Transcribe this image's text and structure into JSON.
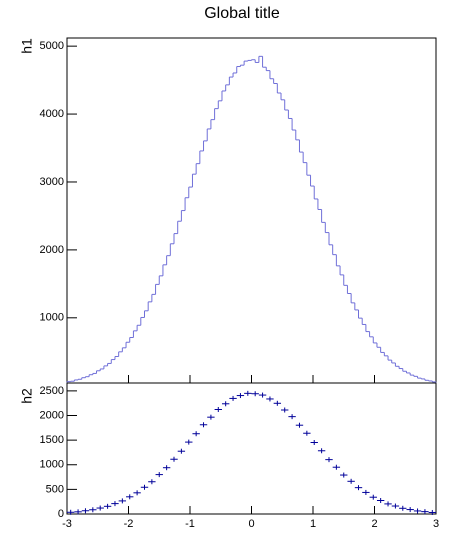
{
  "title": "Global title",
  "chart_data": [
    {
      "type": "histogram",
      "y_label": "h1",
      "color": "#6f6fd8",
      "bins": [
        -3,
        -2.94,
        -2.88,
        -2.82,
        -2.76,
        -2.7,
        -2.64,
        -2.58,
        -2.52,
        -2.46,
        -2.4,
        -2.34,
        -2.28,
        -2.22,
        -2.16,
        -2.1,
        -2.04,
        -1.98,
        -1.92,
        -1.86,
        -1.8,
        -1.74,
        -1.68,
        -1.62,
        -1.56,
        -1.5,
        -1.44,
        -1.38,
        -1.32,
        -1.26,
        -1.2,
        -1.14,
        -1.08,
        -1.02,
        -0.96,
        -0.9,
        -0.84,
        -0.78,
        -0.72,
        -0.66,
        -0.6,
        -0.54,
        -0.48,
        -0.42,
        -0.36,
        -0.3,
        -0.24,
        -0.18,
        -0.12,
        -0.06,
        0,
        0.06,
        0.12,
        0.18,
        0.24,
        0.3,
        0.36,
        0.42,
        0.48,
        0.54,
        0.6,
        0.66,
        0.72,
        0.78,
        0.84,
        0.9,
        0.96,
        1.02,
        1.08,
        1.14,
        1.2,
        1.26,
        1.32,
        1.38,
        1.44,
        1.5,
        1.56,
        1.62,
        1.68,
        1.74,
        1.8,
        1.86,
        1.92,
        1.98,
        2.04,
        2.1,
        2.16,
        2.22,
        2.28,
        2.34,
        2.4,
        2.46,
        2.52,
        2.58,
        2.64,
        2.7,
        2.76,
        2.82,
        2.88,
        2.94,
        3
      ],
      "values": [
        60,
        66,
        85,
        95,
        118,
        133,
        162,
        181,
        220,
        247,
        292,
        328,
        385,
        430,
        499,
        558,
        640,
        710,
        808,
        890,
        1005,
        1103,
        1235,
        1345,
        1492,
        1618,
        1780,
        1915,
        2090,
        2240,
        2422,
        2579,
        2768,
        2925,
        3115,
        3270,
        3457,
        3605,
        3781,
        3918,
        4080,
        4195,
        4340,
        4430,
        4545,
        4605,
        4700,
        4720,
        4780,
        4790,
        4800,
        4760,
        4850,
        4690,
        4640,
        4520,
        4450,
        4310,
        4210,
        4060,
        3935,
        3765,
        3620,
        3440,
        3285,
        3100,
        2940,
        2750,
        2595,
        2405,
        2255,
        2075,
        1930,
        1765,
        1632,
        1478,
        1358,
        1220,
        1116,
        995,
        902,
        797,
        720,
        630,
        566,
        490,
        440,
        377,
        335,
        286,
        253,
        213,
        188,
        156,
        138,
        112,
        100,
        80,
        70,
        56
      ],
      "xlim": [
        -3,
        3
      ],
      "xticks": [
        -3,
        -2,
        -1,
        0,
        1,
        2,
        3
      ],
      "ylim": [
        40,
        5120
      ],
      "yticks": [
        1000,
        2000,
        3000,
        4000,
        5000
      ]
    },
    {
      "type": "errorbar-histogram",
      "y_label": "h2",
      "color": "#000099",
      "bins": [
        -3,
        -2.88,
        -2.76,
        -2.64,
        -2.52,
        -2.4,
        -2.28,
        -2.16,
        -2.04,
        -1.92,
        -1.8,
        -1.68,
        -1.56,
        -1.44,
        -1.32,
        -1.2,
        -1.08,
        -0.96,
        -0.84,
        -0.72,
        -0.6,
        -0.48,
        -0.36,
        -0.24,
        -0.12,
        0,
        0.12,
        0.24,
        0.36,
        0.48,
        0.6,
        0.72,
        0.84,
        0.96,
        1.08,
        1.2,
        1.32,
        1.44,
        1.56,
        1.68,
        1.8,
        1.92,
        2.04,
        2.16,
        2.28,
        2.4,
        2.52,
        2.64,
        2.76,
        2.88,
        3
      ],
      "values": [
        35,
        44,
        66,
        86,
        121,
        156,
        211,
        266,
        349,
        430,
        543,
        655,
        800,
        940,
        1112,
        1275,
        1460,
        1630,
        1812,
        1966,
        2122,
        2238,
        2347,
        2405,
        2450,
        2442,
        2415,
        2336,
        2248,
        2112,
        1977,
        1803,
        1640,
        1452,
        1284,
        1104,
        950,
        791,
        664,
        535,
        438,
        341,
        274,
        205,
        162,
        116,
        90,
        62,
        48,
        31
      ],
      "xlim": [
        -3,
        3
      ],
      "xticks": [
        -3,
        -2,
        -1,
        0,
        1,
        2,
        3
      ],
      "ylim": [
        0,
        2660
      ],
      "yticks": [
        0,
        500,
        1000,
        1500,
        2000,
        2500
      ]
    }
  ]
}
